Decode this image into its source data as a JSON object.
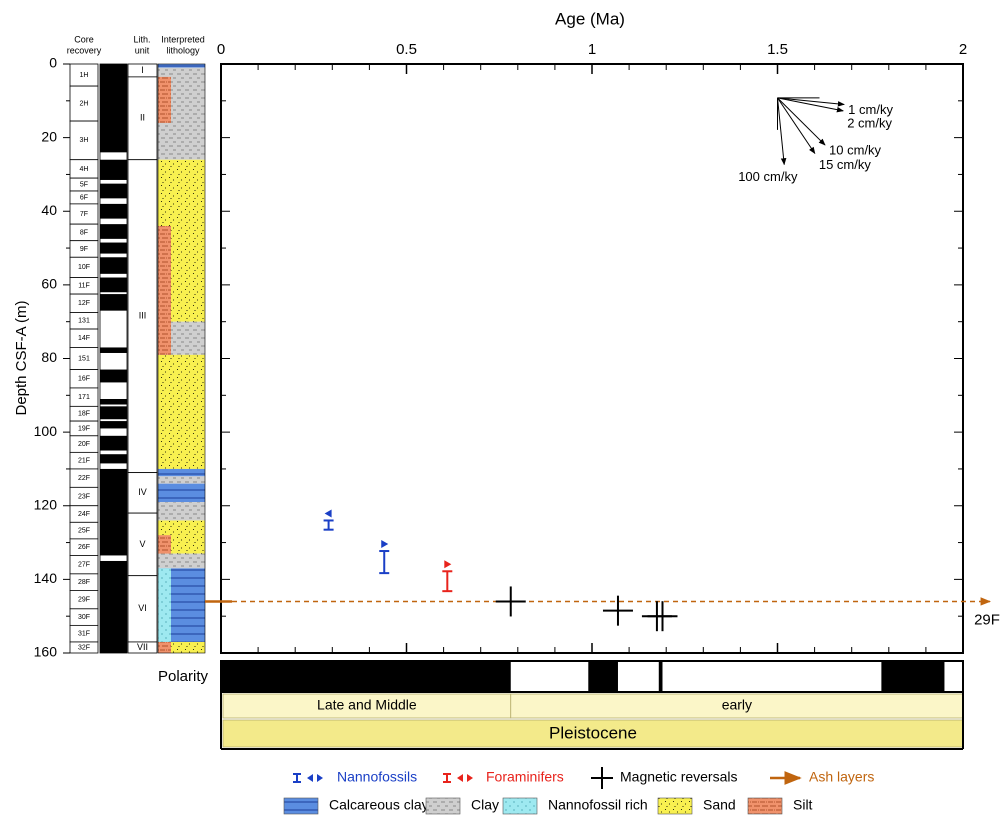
{
  "chart_data": {
    "type": "age-depth",
    "title": "Age (Ma)",
    "y_label": "Depth CSF-A (m)",
    "xlim": [
      0,
      2
    ],
    "xticks": [
      0,
      0.5,
      1,
      1.5,
      2
    ],
    "xminorticks": [
      0.1,
      0.2,
      0.3,
      0.4,
      0.6,
      0.7,
      0.8,
      0.9,
      1.1,
      1.2,
      1.3,
      1.4,
      1.6,
      1.7,
      1.8,
      1.9
    ],
    "ylim": [
      0,
      160
    ],
    "y_inverted": true,
    "yticks": [
      0,
      20,
      40,
      60,
      80,
      100,
      120,
      140,
      160
    ],
    "yminorticks": [
      10,
      30,
      50,
      70,
      90,
      110,
      130,
      150
    ],
    "core_header": [
      "Core",
      "recovery"
    ],
    "unit_header": [
      "Lith.",
      "unit"
    ],
    "lith_header": [
      "Interpreted",
      "lithology"
    ],
    "cores": [
      {
        "label": "1H",
        "top": 0,
        "bottom": 6
      },
      {
        "label": "2H",
        "top": 6,
        "bottom": 15.5
      },
      {
        "label": "3H",
        "top": 15.5,
        "bottom": 26
      },
      {
        "label": "4H",
        "top": 26,
        "bottom": 31
      },
      {
        "label": "5F",
        "top": 31,
        "bottom": 34.5
      },
      {
        "label": "6F",
        "top": 34.5,
        "bottom": 38
      },
      {
        "label": "7F",
        "top": 38,
        "bottom": 43.5
      },
      {
        "label": "8F",
        "top": 43.5,
        "bottom": 48
      },
      {
        "label": "9F",
        "top": 48,
        "bottom": 52.5
      },
      {
        "label": "10F",
        "top": 52.5,
        "bottom": 58
      },
      {
        "label": "11F",
        "top": 58,
        "bottom": 62.5
      },
      {
        "label": "12F",
        "top": 62.5,
        "bottom": 67.5
      },
      {
        "label": "131",
        "top": 67.5,
        "bottom": 72
      },
      {
        "label": "14F",
        "top": 72,
        "bottom": 77
      },
      {
        "label": "151",
        "top": 77,
        "bottom": 83
      },
      {
        "label": "16F",
        "top": 83,
        "bottom": 88
      },
      {
        "label": "171",
        "top": 88,
        "bottom": 93
      },
      {
        "label": "18F",
        "top": 93,
        "bottom": 97
      },
      {
        "label": "19F",
        "top": 97,
        "bottom": 101
      },
      {
        "label": "20F",
        "top": 101,
        "bottom": 105.5
      },
      {
        "label": "21F",
        "top": 105.5,
        "bottom": 110
      },
      {
        "label": "22F",
        "top": 110,
        "bottom": 115
      },
      {
        "label": "23F",
        "top": 115,
        "bottom": 120
      },
      {
        "label": "24F",
        "top": 120,
        "bottom": 124.5
      },
      {
        "label": "25F",
        "top": 124.5,
        "bottom": 129
      },
      {
        "label": "26F",
        "top": 129,
        "bottom": 133.5
      },
      {
        "label": "27F",
        "top": 133.5,
        "bottom": 138.5
      },
      {
        "label": "28F",
        "top": 138.5,
        "bottom": 143
      },
      {
        "label": "29F",
        "top": 143,
        "bottom": 148
      },
      {
        "label": "30F",
        "top": 148,
        "bottom": 152.5
      },
      {
        "label": "31F",
        "top": 152.5,
        "bottom": 157
      },
      {
        "label": "32F",
        "top": 157,
        "bottom": 160
      }
    ],
    "recovery": [
      [
        0,
        24
      ],
      [
        26,
        31.5
      ],
      [
        32.5,
        36.5
      ],
      [
        38,
        42
      ],
      [
        43.5,
        47.5
      ],
      [
        48.5,
        51.5
      ],
      [
        52.5,
        57
      ],
      [
        58,
        62
      ],
      [
        62.5,
        67
      ],
      [
        77,
        78.5
      ],
      [
        83,
        86.5
      ],
      [
        91,
        92.5
      ],
      [
        93,
        96.5
      ],
      [
        97,
        99
      ],
      [
        101,
        105
      ],
      [
        106,
        108.5
      ],
      [
        110,
        133.5
      ],
      [
        135,
        160
      ]
    ],
    "units": [
      {
        "label": "I",
        "top": 0,
        "bottom": 3.5
      },
      {
        "label": "II",
        "top": 3.5,
        "bottom": 26
      },
      {
        "label": "III",
        "top": 26,
        "bottom": 111
      },
      {
        "label": "IV",
        "top": 111,
        "bottom": 122
      },
      {
        "label": "V",
        "top": 122,
        "bottom": 139
      },
      {
        "label": "VI",
        "top": 139,
        "bottom": 157
      },
      {
        "label": "VII",
        "top": 157,
        "bottom": 160
      }
    ],
    "lithology": [
      {
        "pattern": 0,
        "top": 0,
        "bottom": 1
      },
      {
        "pattern": 1,
        "top": 1,
        "bottom": 26
      },
      {
        "pattern": 3,
        "top": 26,
        "bottom": 70
      },
      {
        "pattern": 1,
        "top": 70,
        "bottom": 79
      },
      {
        "pattern": 3,
        "top": 79,
        "bottom": 110
      },
      {
        "pattern": 0,
        "top": 110,
        "bottom": 112
      },
      {
        "pattern": 1,
        "top": 112,
        "bottom": 114
      },
      {
        "pattern": 0,
        "top": 114,
        "bottom": 119
      },
      {
        "pattern": 1,
        "top": 119,
        "bottom": 124
      },
      {
        "pattern": 3,
        "top": 124,
        "bottom": 133
      },
      {
        "pattern": 1,
        "top": 133,
        "bottom": 137
      },
      {
        "pattern": 0,
        "top": 137,
        "bottom": 157
      },
      {
        "pattern": 3,
        "top": 157,
        "bottom": 160
      }
    ],
    "lithology_strip": [
      {
        "pattern": 4,
        "top": 3.5,
        "bottom": 16
      },
      {
        "pattern": 4,
        "top": 44,
        "bottom": 79
      },
      {
        "pattern": 4,
        "top": 128,
        "bottom": 133
      },
      {
        "pattern": 2,
        "top": 137,
        "bottom": 157
      },
      {
        "pattern": 4,
        "top": 157,
        "bottom": 160
      }
    ],
    "series": [
      {
        "name": "Nannofossils",
        "color": "#1a3fc6",
        "points": [
          {
            "x": 0.29,
            "top": 124,
            "bottom": 126.5,
            "arrow": "left"
          },
          {
            "x": 0.44,
            "top": 132.3,
            "bottom": 138.3,
            "arrow": "right"
          }
        ]
      },
      {
        "name": "Foraminifers",
        "color": "#e8231c",
        "points": [
          {
            "x": 0.61,
            "top": 137.8,
            "bottom": 143.2,
            "arrow": "right"
          }
        ]
      },
      {
        "name": "Magnetic reversals",
        "color": "#000000",
        "points": [
          {
            "x": 0.781,
            "y": 146
          },
          {
            "x": 1.07,
            "y": 148.5
          },
          {
            "x": 1.175,
            "y": 150
          },
          {
            "x": 1.19,
            "y": 150
          }
        ]
      }
    ],
    "ash_layers": {
      "name": "Ash layers",
      "color": "#c0650f",
      "depth": 146,
      "label": "29F"
    },
    "sed_rates": {
      "origin": [
        1.5,
        9.2
      ],
      "rates": [
        {
          "value": 1,
          "label": "1 cm/ky"
        },
        {
          "value": 2,
          "label": "2 cm/ky"
        },
        {
          "value": 10,
          "label": "10 cm/ky"
        },
        {
          "value": 15,
          "label": "15 cm/ky"
        },
        {
          "value": 100,
          "label": "100 cm/ky"
        }
      ]
    },
    "polarity": {
      "label": "Polarity",
      "normal": [
        [
          0,
          0.781
        ],
        [
          0.99,
          1.07
        ],
        [
          1.18,
          1.19
        ],
        [
          1.78,
          1.95
        ]
      ]
    },
    "subepochs": [
      {
        "label": "Late and Middle",
        "start": 0,
        "end": 0.781,
        "fill": "#fbf6c8"
      },
      {
        "label": "early",
        "start": 0.781,
        "end": 2,
        "fill": "#fbf6c8"
      }
    ],
    "epoch": {
      "label": "Pleistocene",
      "start": 0,
      "end": 2,
      "fill": "#f3ea8a"
    },
    "lithology_key": [
      {
        "name": "Calcareous clay",
        "color": "#5b8de0"
      },
      {
        "name": "Clay",
        "color": "#cfcfcf"
      },
      {
        "name": "Nannofossil rich",
        "color": "#9ee9f0"
      },
      {
        "name": "Sand",
        "color": "#f8f050"
      },
      {
        "name": "Silt",
        "color": "#f0926c"
      }
    ]
  }
}
